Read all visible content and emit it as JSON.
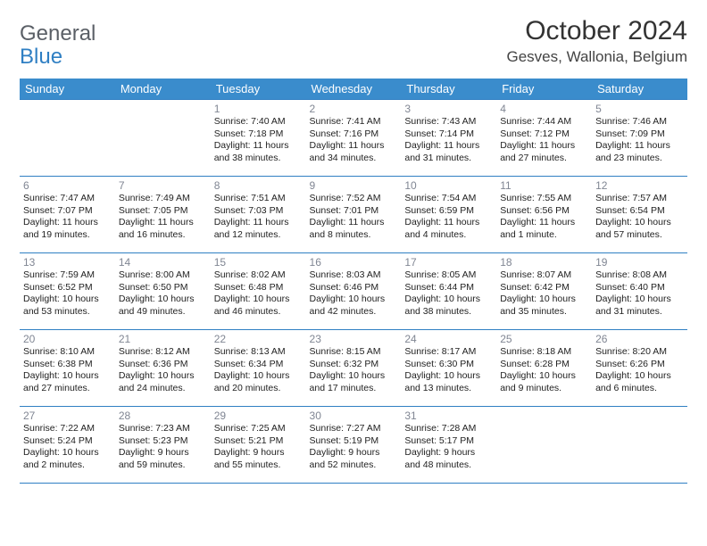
{
  "brand": {
    "part1": "General",
    "part2": "Blue"
  },
  "title": "October 2024",
  "location": "Gesves, Wallonia, Belgium",
  "day_headers": [
    "Sunday",
    "Monday",
    "Tuesday",
    "Wednesday",
    "Thursday",
    "Friday",
    "Saturday"
  ],
  "colors": {
    "header_bg": "#3a8ccc",
    "border": "#2f7fc3",
    "daynum": "#808693",
    "text": "#222222",
    "title": "#333333"
  },
  "fonts": {
    "title_size": 30,
    "location_size": 17,
    "header_size": 13,
    "daynum_size": 12,
    "cell_size": 10.5
  },
  "weeks": [
    [
      null,
      null,
      {
        "n": "1",
        "sunrise": "Sunrise: 7:40 AM",
        "sunset": "Sunset: 7:18 PM",
        "daylight": "Daylight: 11 hours and 38 minutes."
      },
      {
        "n": "2",
        "sunrise": "Sunrise: 7:41 AM",
        "sunset": "Sunset: 7:16 PM",
        "daylight": "Daylight: 11 hours and 34 minutes."
      },
      {
        "n": "3",
        "sunrise": "Sunrise: 7:43 AM",
        "sunset": "Sunset: 7:14 PM",
        "daylight": "Daylight: 11 hours and 31 minutes."
      },
      {
        "n": "4",
        "sunrise": "Sunrise: 7:44 AM",
        "sunset": "Sunset: 7:12 PM",
        "daylight": "Daylight: 11 hours and 27 minutes."
      },
      {
        "n": "5",
        "sunrise": "Sunrise: 7:46 AM",
        "sunset": "Sunset: 7:09 PM",
        "daylight": "Daylight: 11 hours and 23 minutes."
      }
    ],
    [
      {
        "n": "6",
        "sunrise": "Sunrise: 7:47 AM",
        "sunset": "Sunset: 7:07 PM",
        "daylight": "Daylight: 11 hours and 19 minutes."
      },
      {
        "n": "7",
        "sunrise": "Sunrise: 7:49 AM",
        "sunset": "Sunset: 7:05 PM",
        "daylight": "Daylight: 11 hours and 16 minutes."
      },
      {
        "n": "8",
        "sunrise": "Sunrise: 7:51 AM",
        "sunset": "Sunset: 7:03 PM",
        "daylight": "Daylight: 11 hours and 12 minutes."
      },
      {
        "n": "9",
        "sunrise": "Sunrise: 7:52 AM",
        "sunset": "Sunset: 7:01 PM",
        "daylight": "Daylight: 11 hours and 8 minutes."
      },
      {
        "n": "10",
        "sunrise": "Sunrise: 7:54 AM",
        "sunset": "Sunset: 6:59 PM",
        "daylight": "Daylight: 11 hours and 4 minutes."
      },
      {
        "n": "11",
        "sunrise": "Sunrise: 7:55 AM",
        "sunset": "Sunset: 6:56 PM",
        "daylight": "Daylight: 11 hours and 1 minute."
      },
      {
        "n": "12",
        "sunrise": "Sunrise: 7:57 AM",
        "sunset": "Sunset: 6:54 PM",
        "daylight": "Daylight: 10 hours and 57 minutes."
      }
    ],
    [
      {
        "n": "13",
        "sunrise": "Sunrise: 7:59 AM",
        "sunset": "Sunset: 6:52 PM",
        "daylight": "Daylight: 10 hours and 53 minutes."
      },
      {
        "n": "14",
        "sunrise": "Sunrise: 8:00 AM",
        "sunset": "Sunset: 6:50 PM",
        "daylight": "Daylight: 10 hours and 49 minutes."
      },
      {
        "n": "15",
        "sunrise": "Sunrise: 8:02 AM",
        "sunset": "Sunset: 6:48 PM",
        "daylight": "Daylight: 10 hours and 46 minutes."
      },
      {
        "n": "16",
        "sunrise": "Sunrise: 8:03 AM",
        "sunset": "Sunset: 6:46 PM",
        "daylight": "Daylight: 10 hours and 42 minutes."
      },
      {
        "n": "17",
        "sunrise": "Sunrise: 8:05 AM",
        "sunset": "Sunset: 6:44 PM",
        "daylight": "Daylight: 10 hours and 38 minutes."
      },
      {
        "n": "18",
        "sunrise": "Sunrise: 8:07 AM",
        "sunset": "Sunset: 6:42 PM",
        "daylight": "Daylight: 10 hours and 35 minutes."
      },
      {
        "n": "19",
        "sunrise": "Sunrise: 8:08 AM",
        "sunset": "Sunset: 6:40 PM",
        "daylight": "Daylight: 10 hours and 31 minutes."
      }
    ],
    [
      {
        "n": "20",
        "sunrise": "Sunrise: 8:10 AM",
        "sunset": "Sunset: 6:38 PM",
        "daylight": "Daylight: 10 hours and 27 minutes."
      },
      {
        "n": "21",
        "sunrise": "Sunrise: 8:12 AM",
        "sunset": "Sunset: 6:36 PM",
        "daylight": "Daylight: 10 hours and 24 minutes."
      },
      {
        "n": "22",
        "sunrise": "Sunrise: 8:13 AM",
        "sunset": "Sunset: 6:34 PM",
        "daylight": "Daylight: 10 hours and 20 minutes."
      },
      {
        "n": "23",
        "sunrise": "Sunrise: 8:15 AM",
        "sunset": "Sunset: 6:32 PM",
        "daylight": "Daylight: 10 hours and 17 minutes."
      },
      {
        "n": "24",
        "sunrise": "Sunrise: 8:17 AM",
        "sunset": "Sunset: 6:30 PM",
        "daylight": "Daylight: 10 hours and 13 minutes."
      },
      {
        "n": "25",
        "sunrise": "Sunrise: 8:18 AM",
        "sunset": "Sunset: 6:28 PM",
        "daylight": "Daylight: 10 hours and 9 minutes."
      },
      {
        "n": "26",
        "sunrise": "Sunrise: 8:20 AM",
        "sunset": "Sunset: 6:26 PM",
        "daylight": "Daylight: 10 hours and 6 minutes."
      }
    ],
    [
      {
        "n": "27",
        "sunrise": "Sunrise: 7:22 AM",
        "sunset": "Sunset: 5:24 PM",
        "daylight": "Daylight: 10 hours and 2 minutes."
      },
      {
        "n": "28",
        "sunrise": "Sunrise: 7:23 AM",
        "sunset": "Sunset: 5:23 PM",
        "daylight": "Daylight: 9 hours and 59 minutes."
      },
      {
        "n": "29",
        "sunrise": "Sunrise: 7:25 AM",
        "sunset": "Sunset: 5:21 PM",
        "daylight": "Daylight: 9 hours and 55 minutes."
      },
      {
        "n": "30",
        "sunrise": "Sunrise: 7:27 AM",
        "sunset": "Sunset: 5:19 PM",
        "daylight": "Daylight: 9 hours and 52 minutes."
      },
      {
        "n": "31",
        "sunrise": "Sunrise: 7:28 AM",
        "sunset": "Sunset: 5:17 PM",
        "daylight": "Daylight: 9 hours and 48 minutes."
      },
      null,
      null
    ]
  ]
}
